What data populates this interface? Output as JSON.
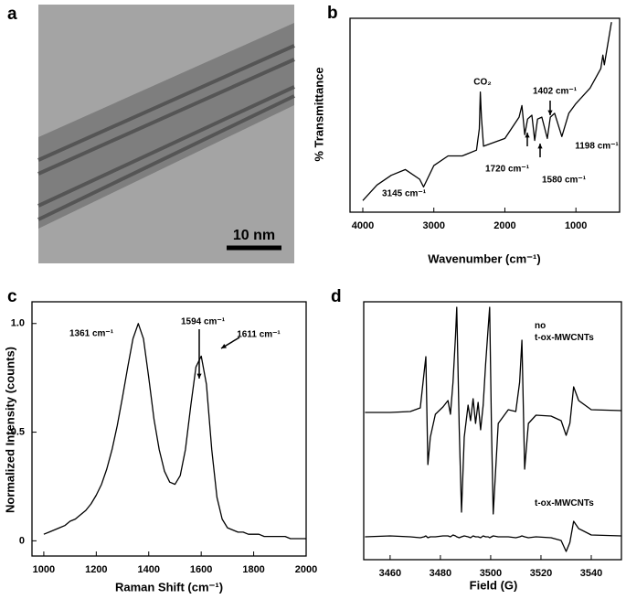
{
  "image_panel": {
    "panel_label": "a",
    "scale_bar": "10 nm"
  },
  "chart_data": [
    {
      "type": "line",
      "panel_label": "b",
      "x_label": "Wavenumber (cm⁻¹)",
      "y_label": "% Transmittance",
      "xlim": [
        4180,
        385
      ],
      "ylim": [
        0,
        1
      ],
      "xticks": [
        4000,
        3000,
        2000,
        1000
      ],
      "x": [
        4000,
        3800,
        3600,
        3400,
        3200,
        3145,
        3000,
        2800,
        2600,
        2400,
        2360,
        2345,
        2330,
        2300,
        2000,
        1800,
        1760,
        1720,
        1680,
        1620,
        1580,
        1540,
        1480,
        1402,
        1360,
        1300,
        1198,
        1100,
        1000,
        800,
        650,
        620,
        600,
        500
      ],
      "series": [
        {
          "color": "#000000",
          "values": [
            0.06,
            0.14,
            0.19,
            0.22,
            0.17,
            0.13,
            0.24,
            0.29,
            0.29,
            0.32,
            0.43,
            0.62,
            0.49,
            0.34,
            0.38,
            0.49,
            0.55,
            0.4,
            0.48,
            0.5,
            0.37,
            0.48,
            0.49,
            0.38,
            0.49,
            0.51,
            0.39,
            0.51,
            0.56,
            0.64,
            0.74,
            0.81,
            0.76,
            0.98
          ]
        }
      ],
      "annotations": [
        "CO₂",
        "3145 cm⁻¹",
        "1720 cm⁻¹",
        "1580 cm⁻¹",
        "1402 cm⁻¹",
        "1198 cm⁻¹"
      ]
    },
    {
      "type": "line",
      "panel_label": "c",
      "x_label": "Raman Shift (cm⁻¹)",
      "y_label": "Normalized Intensity (counts)",
      "xlim": [
        955,
        2000
      ],
      "ylim": [
        -0.07,
        1.1
      ],
      "xticks": [
        1000,
        1200,
        1400,
        1600,
        1800,
        2000
      ],
      "yticks": [
        0,
        0.5,
        {
          "value": 1,
          "label": "1.0"
        }
      ],
      "x": [
        1000,
        1020,
        1040,
        1060,
        1080,
        1100,
        1120,
        1140,
        1160,
        1180,
        1200,
        1220,
        1240,
        1260,
        1280,
        1300,
        1320,
        1340,
        1360,
        1380,
        1400,
        1420,
        1440,
        1460,
        1480,
        1500,
        1520,
        1540,
        1560,
        1580,
        1600,
        1620,
        1640,
        1660,
        1680,
        1700,
        1720,
        1740,
        1760,
        1780,
        1800,
        1820,
        1840,
        1860,
        1880,
        1900,
        1920,
        1940,
        1960,
        1980,
        2000
      ],
      "series": [
        {
          "color": "#000000",
          "values": [
            0.03,
            0.04,
            0.05,
            0.06,
            0.07,
            0.09,
            0.1,
            0.12,
            0.14,
            0.17,
            0.21,
            0.26,
            0.33,
            0.42,
            0.53,
            0.66,
            0.8,
            0.93,
            1.0,
            0.93,
            0.75,
            0.56,
            0.42,
            0.32,
            0.27,
            0.26,
            0.3,
            0.42,
            0.62,
            0.8,
            0.85,
            0.72,
            0.42,
            0.2,
            0.1,
            0.06,
            0.05,
            0.04,
            0.04,
            0.03,
            0.03,
            0.03,
            0.02,
            0.02,
            0.02,
            0.02,
            0.02,
            0.01,
            0.01,
            0.01,
            0.01
          ]
        }
      ],
      "annotations": [
        "1361 cm⁻¹",
        "1594 cm⁻¹",
        "1611 cm⁻¹"
      ]
    },
    {
      "type": "line",
      "panel_label": "d",
      "x_label": "Field (G)",
      "xlim": [
        3449.5,
        3552
      ],
      "ylim": [
        -2.4,
        25.8
      ],
      "xticks": [
        3460,
        3480,
        3500,
        3520,
        3540
      ],
      "x": [
        3450,
        3460,
        3468,
        3472,
        3473.5,
        3474.2,
        3475,
        3476,
        3478,
        3481,
        3483,
        3484,
        3485,
        3486,
        3486.5,
        3487.5,
        3488.4,
        3489.5,
        3491,
        3492,
        3493,
        3494,
        3495,
        3496,
        3497,
        3498,
        3499,
        3499.6,
        3500.3,
        3501,
        3503,
        3507,
        3510,
        3511.5,
        3512.4,
        3513.5,
        3515,
        3518,
        3524,
        3528,
        3530,
        3531.5,
        3533,
        3535,
        3540,
        3552
      ],
      "series": [
        {
          "name": "no\nt-ox-MWCNTs",
          "color": "#000000",
          "values": [
            13.7,
            13.7,
            13.8,
            14.2,
            18,
            19.8,
            8,
            11,
            13.5,
            14.3,
            15,
            13.5,
            17,
            22,
            25.2,
            12,
            2.8,
            11,
            14.5,
            12.8,
            15.2,
            12.5,
            14.8,
            11.8,
            14.5,
            19,
            23,
            25.2,
            12,
            2.6,
            12.5,
            14,
            13.8,
            17,
            21.6,
            7.5,
            12.5,
            13.4,
            13.3,
            12.8,
            11.2,
            12.5,
            16.5,
            15,
            14,
            13.9
          ]
        },
        {
          "name": "t-ox-MWCNTs",
          "color": "#000000",
          "values": [
            0.1,
            0.2,
            0.1,
            0,
            0.1,
            0.2,
            0,
            0.1,
            0.1,
            0.2,
            0.2,
            0.1,
            0.3,
            0.2,
            0.1,
            0,
            0.1,
            0.2,
            0.1,
            0,
            0.2,
            0.1,
            0.1,
            0,
            0.2,
            0.1,
            0.1,
            0,
            0.1,
            0.2,
            0.1,
            0.1,
            0,
            0.1,
            0.2,
            0.1,
            0,
            0.1,
            0,
            -0.3,
            -1.5,
            -0.5,
            1.8,
            1.0,
            0.3,
            0.2
          ]
        }
      ]
    }
  ]
}
